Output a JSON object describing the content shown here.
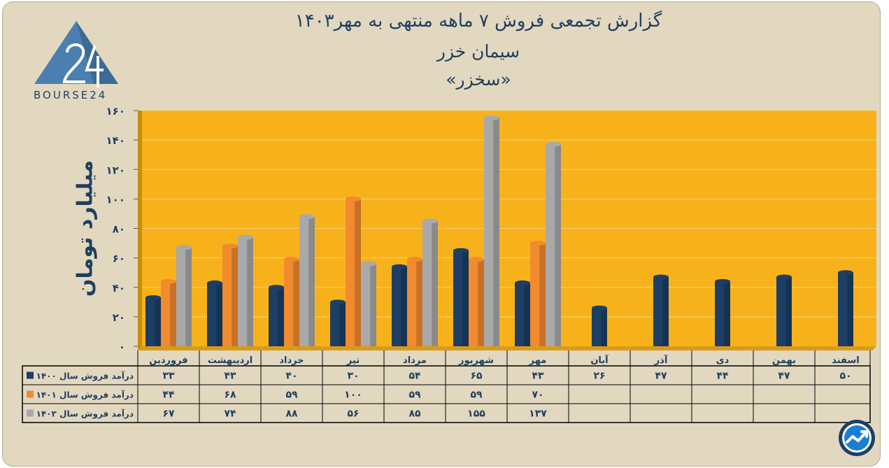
{
  "header": {
    "title_line1": "گزارش تجمعی فروش ۷ ماهه منتهی به مهر۱۴۰۳",
    "title_line2": "سیمان خزر",
    "title_line3": "«سخزر»",
    "logo_text": "BOURSE24"
  },
  "colors": {
    "background": "#e2d8c0",
    "plot_area": "#f7b21b",
    "series_1400": "#1d3f66",
    "series_1401": "#f28a2f",
    "series_1403": "#a9a9a9"
  },
  "icons": [
    "bourse24-logo-icon",
    "trend-chart-icon"
  ],
  "chart_data": {
    "type": "bar",
    "ylabel": "میلیارد تومان",
    "ylim": [
      0,
      160
    ],
    "yticks": [
      "۰",
      "۲۰",
      "۴۰",
      "۶۰",
      "۸۰",
      "۱۰۰",
      "۱۲۰",
      "۱۴۰",
      "۱۶۰"
    ],
    "categories": [
      "فروردین",
      "اردیبهشت",
      "خرداد",
      "تیر",
      "مرداد",
      "شهریور",
      "مهر",
      "آبان",
      "آذر",
      "دی",
      "بهمن",
      "اسفند"
    ],
    "series": [
      {
        "name": "درآمد فروش سال ۱۴۰۰",
        "values": [
          33,
          43,
          40,
          30,
          54,
          65,
          43,
          26,
          47,
          44,
          47,
          50
        ],
        "labels": [
          "۳۳",
          "۴۳",
          "۴۰",
          "۳۰",
          "۵۴",
          "۶۵",
          "۴۳",
          "۲۶",
          "۴۷",
          "۴۴",
          "۴۷",
          "۵۰"
        ]
      },
      {
        "name": "درآمد فروش سال ۱۴۰۱",
        "values": [
          44,
          68,
          59,
          100,
          59,
          59,
          70,
          null,
          null,
          null,
          null,
          null
        ],
        "labels": [
          "۴۴",
          "۶۸",
          "۵۹",
          "۱۰۰",
          "۵۹",
          "۵۹",
          "۷۰",
          "",
          "",
          "",
          "",
          ""
        ]
      },
      {
        "name": "درآمد فروش سال ۱۴۰۳",
        "values": [
          67,
          74,
          88,
          56,
          85,
          155,
          137,
          null,
          null,
          null,
          null,
          null
        ],
        "labels": [
          "۶۷",
          "۷۴",
          "۸۸",
          "۵۶",
          "۸۵",
          "۱۵۵",
          "۱۳۷",
          "",
          "",
          "",
          "",
          ""
        ]
      }
    ],
    "legend_placement": "table-left",
    "grid": true
  }
}
